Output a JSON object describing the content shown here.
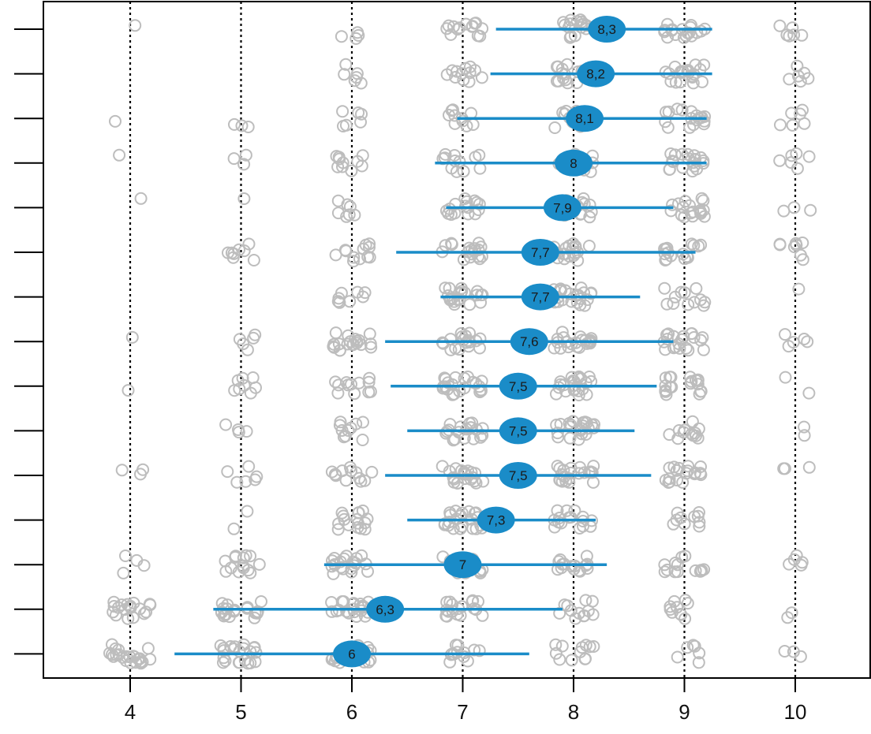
{
  "chart_data": {
    "type": "scatter",
    "title": "",
    "xlabel": "",
    "ylabel": "",
    "xlim": [
      3.2,
      10.7
    ],
    "x_ticks": [
      4,
      5,
      6,
      7,
      8,
      9,
      10
    ],
    "x_tick_labels": [
      "4",
      "5",
      "6",
      "7",
      "8",
      "9",
      "10"
    ],
    "vertical_gridlines": [
      4,
      5,
      6,
      7,
      8,
      9,
      10
    ],
    "gridline_style": "dotted",
    "row_count": 15,
    "colors": {
      "points": "#bdbdbd",
      "interval": "#1a8cc8",
      "mean_marker": "#1a8cc8",
      "frame": "#000000"
    },
    "rows": [
      {
        "mean": 8.3,
        "label": "8,3",
        "interval": [
          7.3,
          9.25
        ],
        "distribution": {
          "4": 1,
          "5": 0,
          "6": 4,
          "7": 14,
          "8": 16,
          "9": 18,
          "10": 6
        }
      },
      {
        "mean": 8.2,
        "label": "8,2",
        "interval": [
          7.25,
          9.25
        ],
        "distribution": {
          "4": 0,
          "5": 0,
          "6": 6,
          "7": 12,
          "8": 16,
          "9": 20,
          "10": 6
        }
      },
      {
        "mean": 8.1,
        "label": "8,1",
        "interval": [
          6.95,
          9.2
        ],
        "distribution": {
          "4": 1,
          "5": 3,
          "6": 6,
          "7": 10,
          "8": 16,
          "9": 18,
          "10": 6
        }
      },
      {
        "mean": 8,
        "label": "8",
        "interval": [
          6.75,
          9.2
        ],
        "distribution": {
          "4": 1,
          "5": 3,
          "6": 10,
          "7": 12,
          "8": 18,
          "9": 20,
          "10": 6
        }
      },
      {
        "mean": 7.9,
        "label": "7,9",
        "interval": [
          6.85,
          8.9
        ],
        "distribution": {
          "4": 1,
          "5": 1,
          "6": 7,
          "7": 16,
          "8": 18,
          "9": 18,
          "10": 3
        }
      },
      {
        "mean": 7.7,
        "label": "7,7",
        "interval": [
          6.4,
          9.1
        ],
        "distribution": {
          "4": 0,
          "5": 8,
          "6": 12,
          "7": 18,
          "8": 18,
          "9": 16,
          "10": 8
        }
      },
      {
        "mean": 7.7,
        "label": "7,7",
        "interval": [
          6.8,
          8.6
        ],
        "distribution": {
          "4": 0,
          "5": 0,
          "6": 8,
          "7": 20,
          "8": 22,
          "9": 12,
          "10": 1
        }
      },
      {
        "mean": 7.6,
        "label": "7,6",
        "interval": [
          6.3,
          8.9
        ],
        "distribution": {
          "4": 1,
          "5": 5,
          "6": 20,
          "7": 18,
          "8": 20,
          "9": 20,
          "10": 5
        }
      },
      {
        "mean": 7.5,
        "label": "7,5",
        "interval": [
          6.35,
          8.75
        ],
        "distribution": {
          "4": 1,
          "5": 8,
          "6": 12,
          "7": 22,
          "8": 22,
          "9": 20,
          "10": 2
        }
      },
      {
        "mean": 7.5,
        "label": "7,5",
        "interval": [
          6.5,
          8.55
        ],
        "distribution": {
          "4": 0,
          "5": 4,
          "6": 10,
          "7": 20,
          "8": 22,
          "9": 12,
          "10": 2
        }
      },
      {
        "mean": 7.5,
        "label": "7,5",
        "interval": [
          6.3,
          8.7
        ],
        "distribution": {
          "4": 3,
          "5": 6,
          "6": 12,
          "7": 22,
          "8": 22,
          "9": 18,
          "10": 3
        }
      },
      {
        "mean": 7.3,
        "label": "7,3",
        "interval": [
          6.5,
          8.2
        ],
        "distribution": {
          "4": 0,
          "5": 2,
          "6": 16,
          "7": 22,
          "8": 16,
          "9": 10,
          "10": 0
        }
      },
      {
        "mean": 7,
        "label": "7",
        "interval": [
          5.75,
          8.3
        ],
        "distribution": {
          "4": 4,
          "5": 14,
          "6": 20,
          "7": 16,
          "8": 16,
          "9": 14,
          "10": 5
        }
      },
      {
        "mean": 6.3,
        "label": "6,3",
        "interval": [
          4.75,
          7.9
        ],
        "distribution": {
          "4": 18,
          "5": 20,
          "6": 22,
          "7": 18,
          "8": 12,
          "9": 10,
          "10": 2
        }
      },
      {
        "mean": 6,
        "label": "6",
        "interval": [
          4.4,
          7.6
        ],
        "distribution": {
          "4": 24,
          "5": 22,
          "6": 18,
          "7": 12,
          "8": 12,
          "9": 6,
          "10": 3
        }
      }
    ]
  }
}
